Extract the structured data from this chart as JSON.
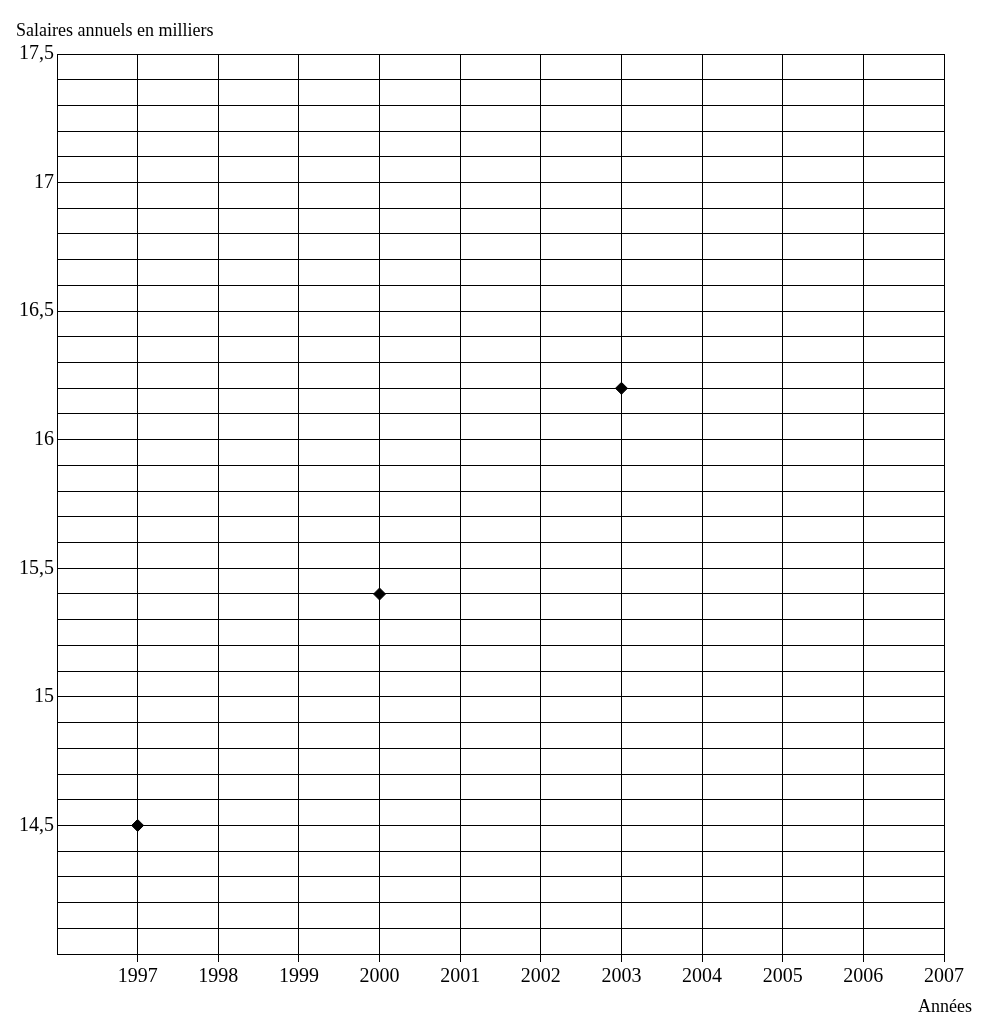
{
  "chart_data": {
    "type": "scatter",
    "ylabel": "Salaires annuels en milliers",
    "xlabel": "Années",
    "x": [
      1997,
      2000,
      2003
    ],
    "series": [
      {
        "color": "#000000",
        "values": [
          14.5,
          15.4,
          16.2
        ]
      }
    ],
    "marker": "diamond",
    "grid": true,
    "legend": false,
    "xlim": [
      1996,
      2007
    ],
    "xticks": [
      1997,
      1998,
      1999,
      2000,
      2001,
      2002,
      2003,
      2004,
      2005,
      2006,
      2007
    ],
    "ylim": [
      14,
      17.5
    ],
    "yticks": [
      {
        "value": 14.1,
        "label": null
      },
      {
        "value": 14.2,
        "label": null
      },
      {
        "value": 14.3,
        "label": null
      },
      {
        "value": 14.4,
        "label": null
      },
      {
        "value": 14.5,
        "label": "14,5"
      },
      {
        "value": 14.6,
        "label": null
      },
      {
        "value": 14.7,
        "label": null
      },
      {
        "value": 14.8,
        "label": null
      },
      {
        "value": 14.9,
        "label": null
      },
      15,
      {
        "value": 15.1,
        "label": null
      },
      {
        "value": 15.2,
        "label": null
      },
      {
        "value": 15.3,
        "label": null
      },
      {
        "value": 15.4,
        "label": null
      },
      {
        "value": 15.5,
        "label": "15,5"
      },
      {
        "value": 15.6,
        "label": null
      },
      {
        "value": 15.7,
        "label": null
      },
      {
        "value": 15.8,
        "label": null
      },
      {
        "value": 15.9,
        "label": null
      },
      16,
      {
        "value": 16.1,
        "label": null
      },
      {
        "value": 16.2,
        "label": null
      },
      {
        "value": 16.3,
        "label": null
      },
      {
        "value": 16.4,
        "label": null
      },
      {
        "value": 16.5,
        "label": "16,5"
      },
      {
        "value": 16.6,
        "label": null
      },
      {
        "value": 16.7,
        "label": null
      },
      {
        "value": 16.8,
        "label": null
      },
      {
        "value": 16.9,
        "label": null
      },
      17,
      {
        "value": 17.1,
        "label": null
      },
      {
        "value": 17.2,
        "label": null
      },
      {
        "value": 17.3,
        "label": null
      },
      {
        "value": 17.4,
        "label": null
      },
      {
        "value": 17.5,
        "label": "17,5"
      }
    ]
  }
}
